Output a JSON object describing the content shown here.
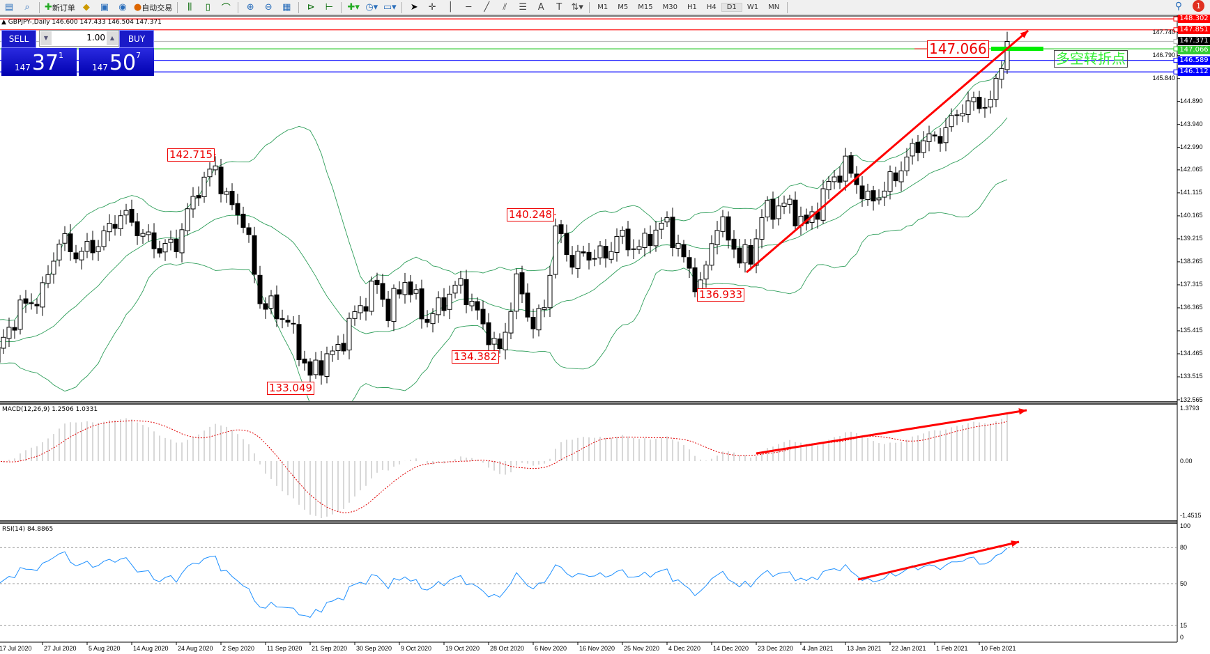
{
  "toolbar": {
    "new_order": "新订单",
    "auto_trading": "自动交易",
    "timeframes": [
      "M1",
      "M5",
      "M15",
      "M30",
      "H1",
      "H4",
      "D1",
      "W1",
      "MN"
    ],
    "active_timeframe": "D1",
    "notification_count": "1"
  },
  "chart": {
    "symbol_header": "GBPJPY-,Daily  146.600 147.433 146.504 147.371",
    "colors": {
      "bull": "#ffffff",
      "bear": "#000000",
      "bands": "#2e9e5a",
      "macd_hist": "#b0b0b0",
      "macd_signal": "#e00000",
      "rsi": "#1e90ff",
      "arrow": "#ff0000"
    }
  },
  "trade_panel": {
    "sell_label": "SELL",
    "buy_label": "BUY",
    "volume": "1.00",
    "sell_price": {
      "prefix": "147",
      "big": "37",
      "sup": "1"
    },
    "buy_price": {
      "prefix": "147",
      "big": "50",
      "sup": "7"
    }
  },
  "price_axis": {
    "ticks": [
      "147.740",
      "146.790",
      "145.840",
      "144.890",
      "143.940",
      "142.990",
      "142.065",
      "141.115",
      "140.165",
      "139.215",
      "138.265",
      "137.315",
      "136.365",
      "135.415",
      "134.465",
      "133.515",
      "132.565"
    ],
    "lines": [
      {
        "value": "148.302",
        "color": "#ff0000"
      },
      {
        "value": "147.851",
        "color": "#ff0000"
      },
      {
        "value": "147.371",
        "color": "#000000"
      },
      {
        "value": "147.066",
        "color": "#33cc33"
      },
      {
        "value": "146.589",
        "color": "#0000ff"
      },
      {
        "value": "146.112",
        "color": "#0000ff"
      }
    ]
  },
  "annotations": {
    "swing_labels": [
      {
        "text": "142.715",
        "bar": 39,
        "price": 142.715
      },
      {
        "text": "133.049",
        "bar": 56,
        "price": 133.049
      },
      {
        "text": "140.248",
        "bar": 100,
        "price": 140.248
      },
      {
        "text": "134.382",
        "bar": 90,
        "price": 134.382
      },
      {
        "text": "136.933",
        "bar": 126,
        "price": 136.933
      }
    ],
    "level_label": "147.066",
    "note": "多空转折点"
  },
  "macd": {
    "label": "MACD(12,26,9) 1.2506 1.0331",
    "ticks": [
      "1.3793",
      "0.00",
      "-1.4515"
    ]
  },
  "rsi": {
    "label": "RSI(14) 84.8865",
    "ticks": [
      "100",
      "80",
      "50",
      "15",
      "0"
    ]
  },
  "dates": [
    "17 Jul 2020",
    "27 Jul 2020",
    "5 Aug 2020",
    "14 Aug 2020",
    "24 Aug 2020",
    "2 Sep 2020",
    "11 Sep 2020",
    "21 Sep 2020",
    "30 Sep 2020",
    "9 Oct 2020",
    "19 Oct 2020",
    "28 Oct 2020",
    "6 Nov 2020",
    "16 Nov 2020",
    "25 Nov 2020",
    "4 Dec 2020",
    "14 Dec 2020",
    "23 Dec 2020",
    "4 Jan 2021",
    "13 Jan 2021",
    "22 Jan 2021",
    "1 Feb 2021",
    "10 Feb 2021"
  ],
  "chart_data": {
    "type": "candlestick",
    "price_path": [
      [
        -40,
        133.6
      ],
      [
        -20,
        135.6
      ],
      [
        0,
        134.4
      ],
      [
        4,
        136.5
      ],
      [
        8,
        137.0
      ],
      [
        11,
        139.0
      ],
      [
        14,
        138.6
      ],
      [
        18,
        139.2
      ],
      [
        22,
        140.1
      ],
      [
        26,
        139.4
      ],
      [
        29,
        139.0
      ],
      [
        32,
        139.0
      ],
      [
        36,
        141.2
      ],
      [
        39,
        142.3
      ],
      [
        41,
        141.0
      ],
      [
        44,
        140.0
      ],
      [
        47,
        136.5
      ],
      [
        52,
        136.0
      ],
      [
        56,
        133.5
      ],
      [
        61,
        134.6
      ],
      [
        64,
        136.3
      ],
      [
        68,
        137.3
      ],
      [
        70,
        136.0
      ],
      [
        73,
        137.5
      ],
      [
        77,
        136.0
      ],
      [
        83,
        137.2
      ],
      [
        87,
        135.8
      ],
      [
        90,
        134.6
      ],
      [
        93,
        137.3
      ],
      [
        96,
        135.5
      ],
      [
        98,
        136.5
      ],
      [
        100,
        139.8
      ],
      [
        103,
        138.3
      ],
      [
        109,
        138.5
      ],
      [
        111,
        139.5
      ],
      [
        115,
        138.8
      ],
      [
        120,
        139.8
      ],
      [
        123,
        138.5
      ],
      [
        126,
        137.2
      ],
      [
        129,
        139.8
      ],
      [
        133,
        138.5
      ],
      [
        135,
        138.6
      ],
      [
        137,
        140.3
      ],
      [
        141,
        140.5
      ],
      [
        145,
        139.8
      ],
      [
        149,
        141.6
      ],
      [
        152,
        142.1
      ],
      [
        156,
        140.7
      ],
      [
        162,
        142.2
      ],
      [
        166,
        143.2
      ],
      [
        168,
        143.3
      ],
      [
        173,
        144.8
      ],
      [
        178,
        144.6
      ],
      [
        180,
        146.6
      ],
      [
        181,
        147.371
      ]
    ]
  }
}
